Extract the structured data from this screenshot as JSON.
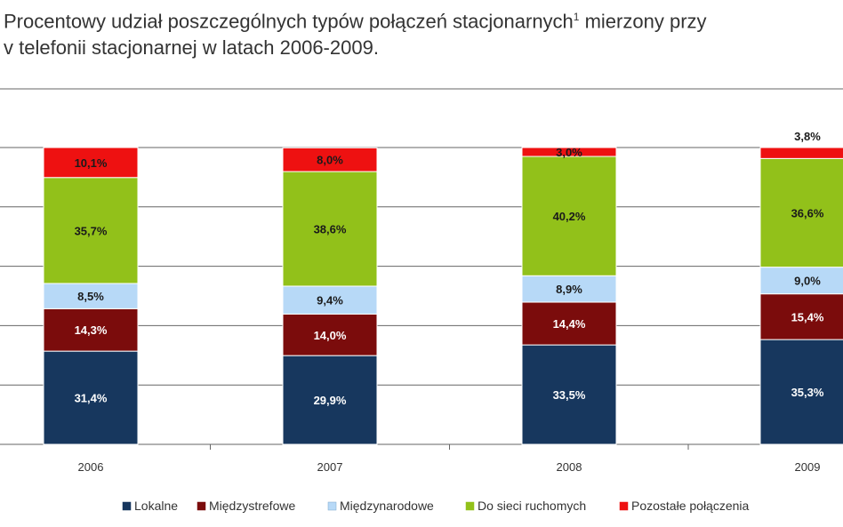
{
  "title": {
    "line1": "Procentowy udział poszczególnych typów połączeń stacjonarnych",
    "footnote_mark": "1",
    "line1_cont": " mierzony przy",
    "line2": "v telefonii stacjonarnej w latach 2006-2009."
  },
  "chart_data": {
    "type": "bar",
    "stacked": true,
    "categories": [
      "2006",
      "2007",
      "2008",
      "2009"
    ],
    "series": [
      {
        "name": "Lokalne",
        "color": "#17375e",
        "values": [
          31.4,
          29.9,
          33.5,
          35.3
        ],
        "labels": [
          "31,4%",
          "29,9%",
          "33,5%",
          "35,3%"
        ],
        "label_color": "#ffffff"
      },
      {
        "name": "Międzystrefowe",
        "color": "#7b0c0c",
        "values": [
          14.3,
          14.0,
          14.4,
          15.4
        ],
        "labels": [
          "14,3%",
          "14,0%",
          "14,4%",
          "15,4%"
        ],
        "label_color": "#ffffff"
      },
      {
        "name": "Międzynarodowe",
        "color": "#b7d9f7",
        "values": [
          8.5,
          9.4,
          8.9,
          9.0
        ],
        "labels": [
          "8,5%",
          "9,4%",
          "8,9%",
          "9,0%"
        ],
        "label_color": "#1a1a1a"
      },
      {
        "name": "Do sieci ruchomych",
        "color": "#92c11a",
        "values": [
          35.7,
          38.6,
          40.2,
          36.6
        ],
        "labels": [
          "35,7%",
          "38,6%",
          "40,2%",
          "36,6%"
        ],
        "label_color": "#1a1a1a"
      },
      {
        "name": "Pozostałe połączenia",
        "color": "#ee1111",
        "values": [
          10.1,
          8.0,
          3.0,
          3.8
        ],
        "labels": [
          "10,1%",
          "8,0%",
          "3,0%",
          "3,8%"
        ],
        "label_color": "#1a1a1a"
      }
    ],
    "ylim": [
      0,
      100
    ],
    "grid": true,
    "legend": "bottom"
  }
}
